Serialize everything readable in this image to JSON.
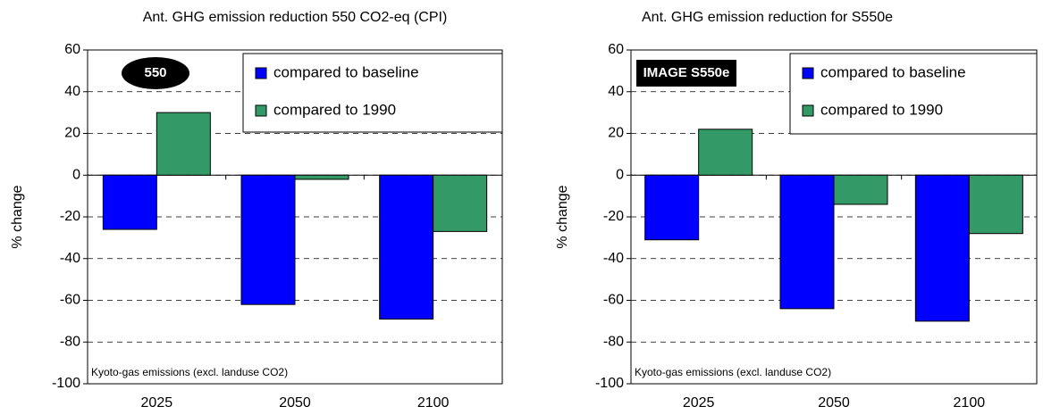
{
  "chart_data": [
    {
      "type": "bar",
      "title": "Ant. GHG emission reduction 550 CO2-eq (CPI)",
      "y_label": "% change",
      "badge": "550",
      "note": "Kyoto-gas emissions (excl. landuse CO2)",
      "categories": [
        "2025",
        "2050",
        "2100"
      ],
      "series": [
        {
          "name": "compared to baseline",
          "color": "#0000ff",
          "values": [
            -26,
            -62,
            -69
          ]
        },
        {
          "name": "compared to 1990",
          "color": "#339966",
          "values": [
            30,
            -2,
            -27
          ]
        }
      ],
      "ylim": [
        -100,
        60
      ],
      "yticks": [
        -100,
        -80,
        -60,
        -40,
        -20,
        0,
        20,
        40,
        60
      ],
      "grid": true
    },
    {
      "type": "bar",
      "title": "Ant. GHG emission reduction for S550e",
      "y_label": "% change",
      "badge": "IMAGE S550e",
      "note": "Kyoto-gas emissions (excl. landuse CO2)",
      "categories": [
        "2025",
        "2050",
        "2100"
      ],
      "series": [
        {
          "name": "compared to baseline",
          "color": "#0000ff",
          "values": [
            -31,
            -64,
            -70
          ]
        },
        {
          "name": "compared to 1990",
          "color": "#339966",
          "values": [
            22,
            -14,
            -28
          ]
        }
      ],
      "ylim": [
        -100,
        60
      ],
      "yticks": [
        -100,
        -80,
        -60,
        -40,
        -20,
        0,
        20,
        40,
        60
      ],
      "grid": true
    }
  ]
}
